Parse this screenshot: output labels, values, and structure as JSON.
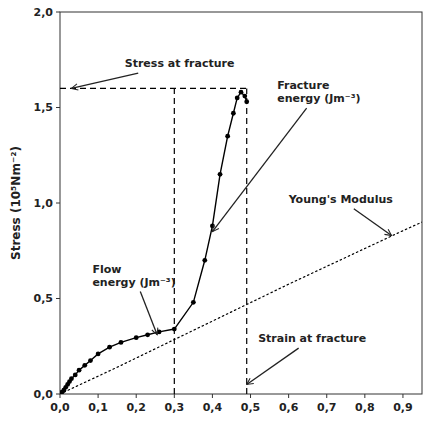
{
  "chart_data": {
    "type": "line",
    "y_label": "Stress (10⁵Nm⁻²)",
    "xlim": [
      0.0,
      0.95
    ],
    "ylim": [
      0.0,
      2.0
    ],
    "xticks": [
      {
        "value": 0.0,
        "label": "0,0"
      },
      {
        "value": 0.1,
        "label": "0,1"
      },
      {
        "value": 0.2,
        "label": "0,2"
      },
      {
        "value": 0.3,
        "label": "0,3"
      },
      {
        "value": 0.4,
        "label": "0,4"
      },
      {
        "value": 0.5,
        "label": "0,5"
      },
      {
        "value": 0.6,
        "label": "0,6"
      },
      {
        "value": 0.7,
        "label": "0,7"
      },
      {
        "value": 0.8,
        "label": "0,8"
      },
      {
        "value": 0.9,
        "label": "0,9"
      }
    ],
    "yticks": [
      {
        "value": 0.0,
        "label": "0,0"
      },
      {
        "value": 0.5,
        "label": "0,5"
      },
      {
        "value": 1.0,
        "label": "1,0"
      },
      {
        "value": 1.5,
        "label": "1,5"
      },
      {
        "value": 2.0,
        "label": "2,0"
      }
    ],
    "grid": false,
    "series": [
      {
        "x": [
          0.0,
          0.15,
          0.3,
          0.45,
          0.6,
          0.75,
          0.9,
          0.95
        ],
        "values": [
          0.0,
          0.14,
          0.285,
          0.43,
          0.575,
          0.715,
          0.855,
          0.9
        ],
        "color": "black",
        "line_style": "dotted"
      },
      {
        "x": [
          0.0,
          0.005,
          0.01,
          0.015,
          0.02,
          0.025,
          0.03,
          0.04,
          0.05,
          0.065,
          0.08,
          0.1,
          0.13,
          0.16,
          0.2,
          0.23,
          0.26,
          0.3,
          0.35,
          0.38,
          0.4,
          0.42,
          0.44,
          0.455,
          0.465,
          0.475,
          0.485,
          0.49
        ],
        "values": [
          0.0,
          0.01,
          0.02,
          0.035,
          0.05,
          0.065,
          0.08,
          0.1,
          0.125,
          0.15,
          0.175,
          0.21,
          0.245,
          0.27,
          0.295,
          0.31,
          0.325,
          0.34,
          0.48,
          0.7,
          0.88,
          1.15,
          1.35,
          1.47,
          1.55,
          1.58,
          1.56,
          1.53
        ],
        "color": "black",
        "line_style": "solid",
        "marker": "circle"
      },
      {
        "x": [
          0.3,
          0.3
        ],
        "values": [
          0,
          1.6
        ],
        "color": "black",
        "line_style": "dashed"
      },
      {
        "x": [
          0.49,
          0.49
        ],
        "values": [
          0,
          1.6
        ],
        "color": "black",
        "line_style": "dashed"
      },
      {
        "x": [
          0,
          0.49
        ],
        "values": [
          1.6,
          1.6
        ],
        "color": "black",
        "line_style": "dashed"
      }
    ],
    "annotations": [
      {
        "text": "Stress at fracture",
        "x": 0.03,
        "y": 1.6,
        "text_x": 0.17,
        "text_y": 1.73
      },
      {
        "text": "Fracture\nenergy (Jm⁻³)",
        "x": 0.4,
        "y": 0.85,
        "text_x": 0.57,
        "text_y": 1.58
      },
      {
        "text": "Flow\nenergy (Jm⁻³)",
        "x": 0.255,
        "y": 0.31,
        "text_x": 0.085,
        "text_y": 0.62
      },
      {
        "text": "Young's Modulus",
        "x": 0.87,
        "y": 0.83,
        "text_x": 0.6,
        "text_y": 1.02
      },
      {
        "text": "Strain at fracture",
        "x": 0.49,
        "y": 0.05,
        "text_x": 0.52,
        "text_y": 0.29
      }
    ]
  }
}
